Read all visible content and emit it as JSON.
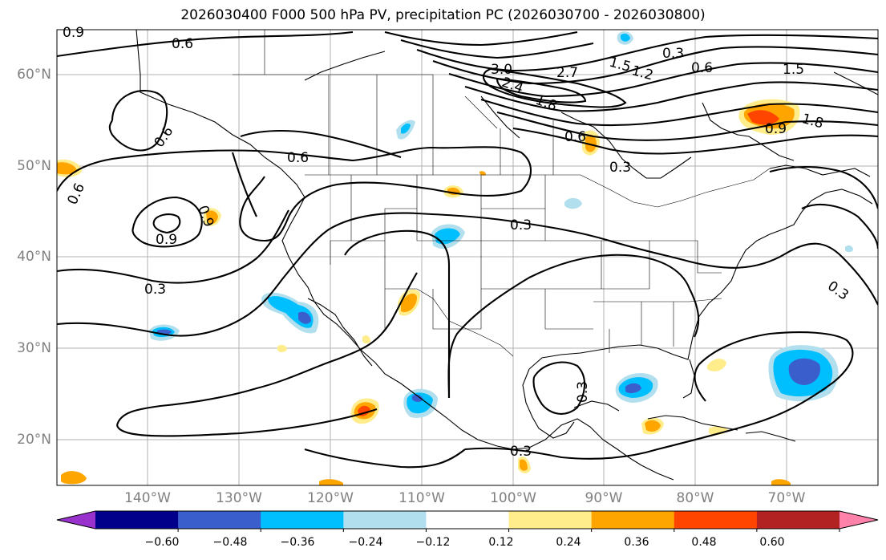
{
  "title": "2026030400 F000 500 hPa PV, precipitation PC (2026030700 - 2026030800)",
  "latitude_labels": [
    "60°N",
    "50°N",
    "40°N",
    "30°N",
    "20°N"
  ],
  "longitude_labels": [
    "140°W",
    "130°W",
    "120°W",
    "110°W",
    "100°W",
    "90°W",
    "80°W",
    "70°W"
  ],
  "contour_labels": [
    "0.9",
    "0.6",
    "0.6",
    "0.6",
    "0.6",
    "0.9",
    "0.9",
    "0.3",
    "0.3",
    "0.3",
    "0.3",
    "0.3",
    "0.3",
    "3.0",
    "2.4",
    "1.8",
    "2.7",
    "1.5",
    "1.2",
    "0.6",
    "0.3",
    "0.9",
    "0.6",
    "1.5",
    "1.8"
  ],
  "colorbar": {
    "ticks": [
      "−0.60",
      "−0.48",
      "−0.36",
      "−0.24",
      "−0.12",
      "0.12",
      "0.24",
      "0.36",
      "0.48",
      "0.60"
    ],
    "colors": [
      "#9932cc",
      "#00008b",
      "#3a5fcd",
      "#00bfff",
      "#b2dfee",
      "#ffffff",
      "#ffec8b",
      "#ffa500",
      "#ff4500",
      "#b22222",
      "#ff82ab"
    ]
  },
  "precipitation_colors": {
    "light_positive": "#ffec8b",
    "positive": "#ffa500",
    "strong_positive": "#ff4500",
    "light_negative": "#b2dfee",
    "negative": "#00bfff",
    "strong_negative": "#3a5fcd"
  },
  "chart_data": {
    "type": "map",
    "title": "2026030400 F000 500 hPa PV, precipitation PC (2026030700 - 2026030800)",
    "lon_range": [
      -150,
      -60
    ],
    "lat_range": [
      15,
      65
    ],
    "gridlines": true,
    "contour_levels": [
      0.3,
      0.6,
      0.9,
      1.2,
      1.5,
      1.8,
      2.1,
      2.4,
      2.7,
      3.0
    ],
    "colorbar_bounds": [
      -0.6,
      -0.48,
      -0.36,
      -0.24,
      -0.12,
      0.12,
      0.24,
      0.36,
      0.48,
      0.6
    ]
  }
}
